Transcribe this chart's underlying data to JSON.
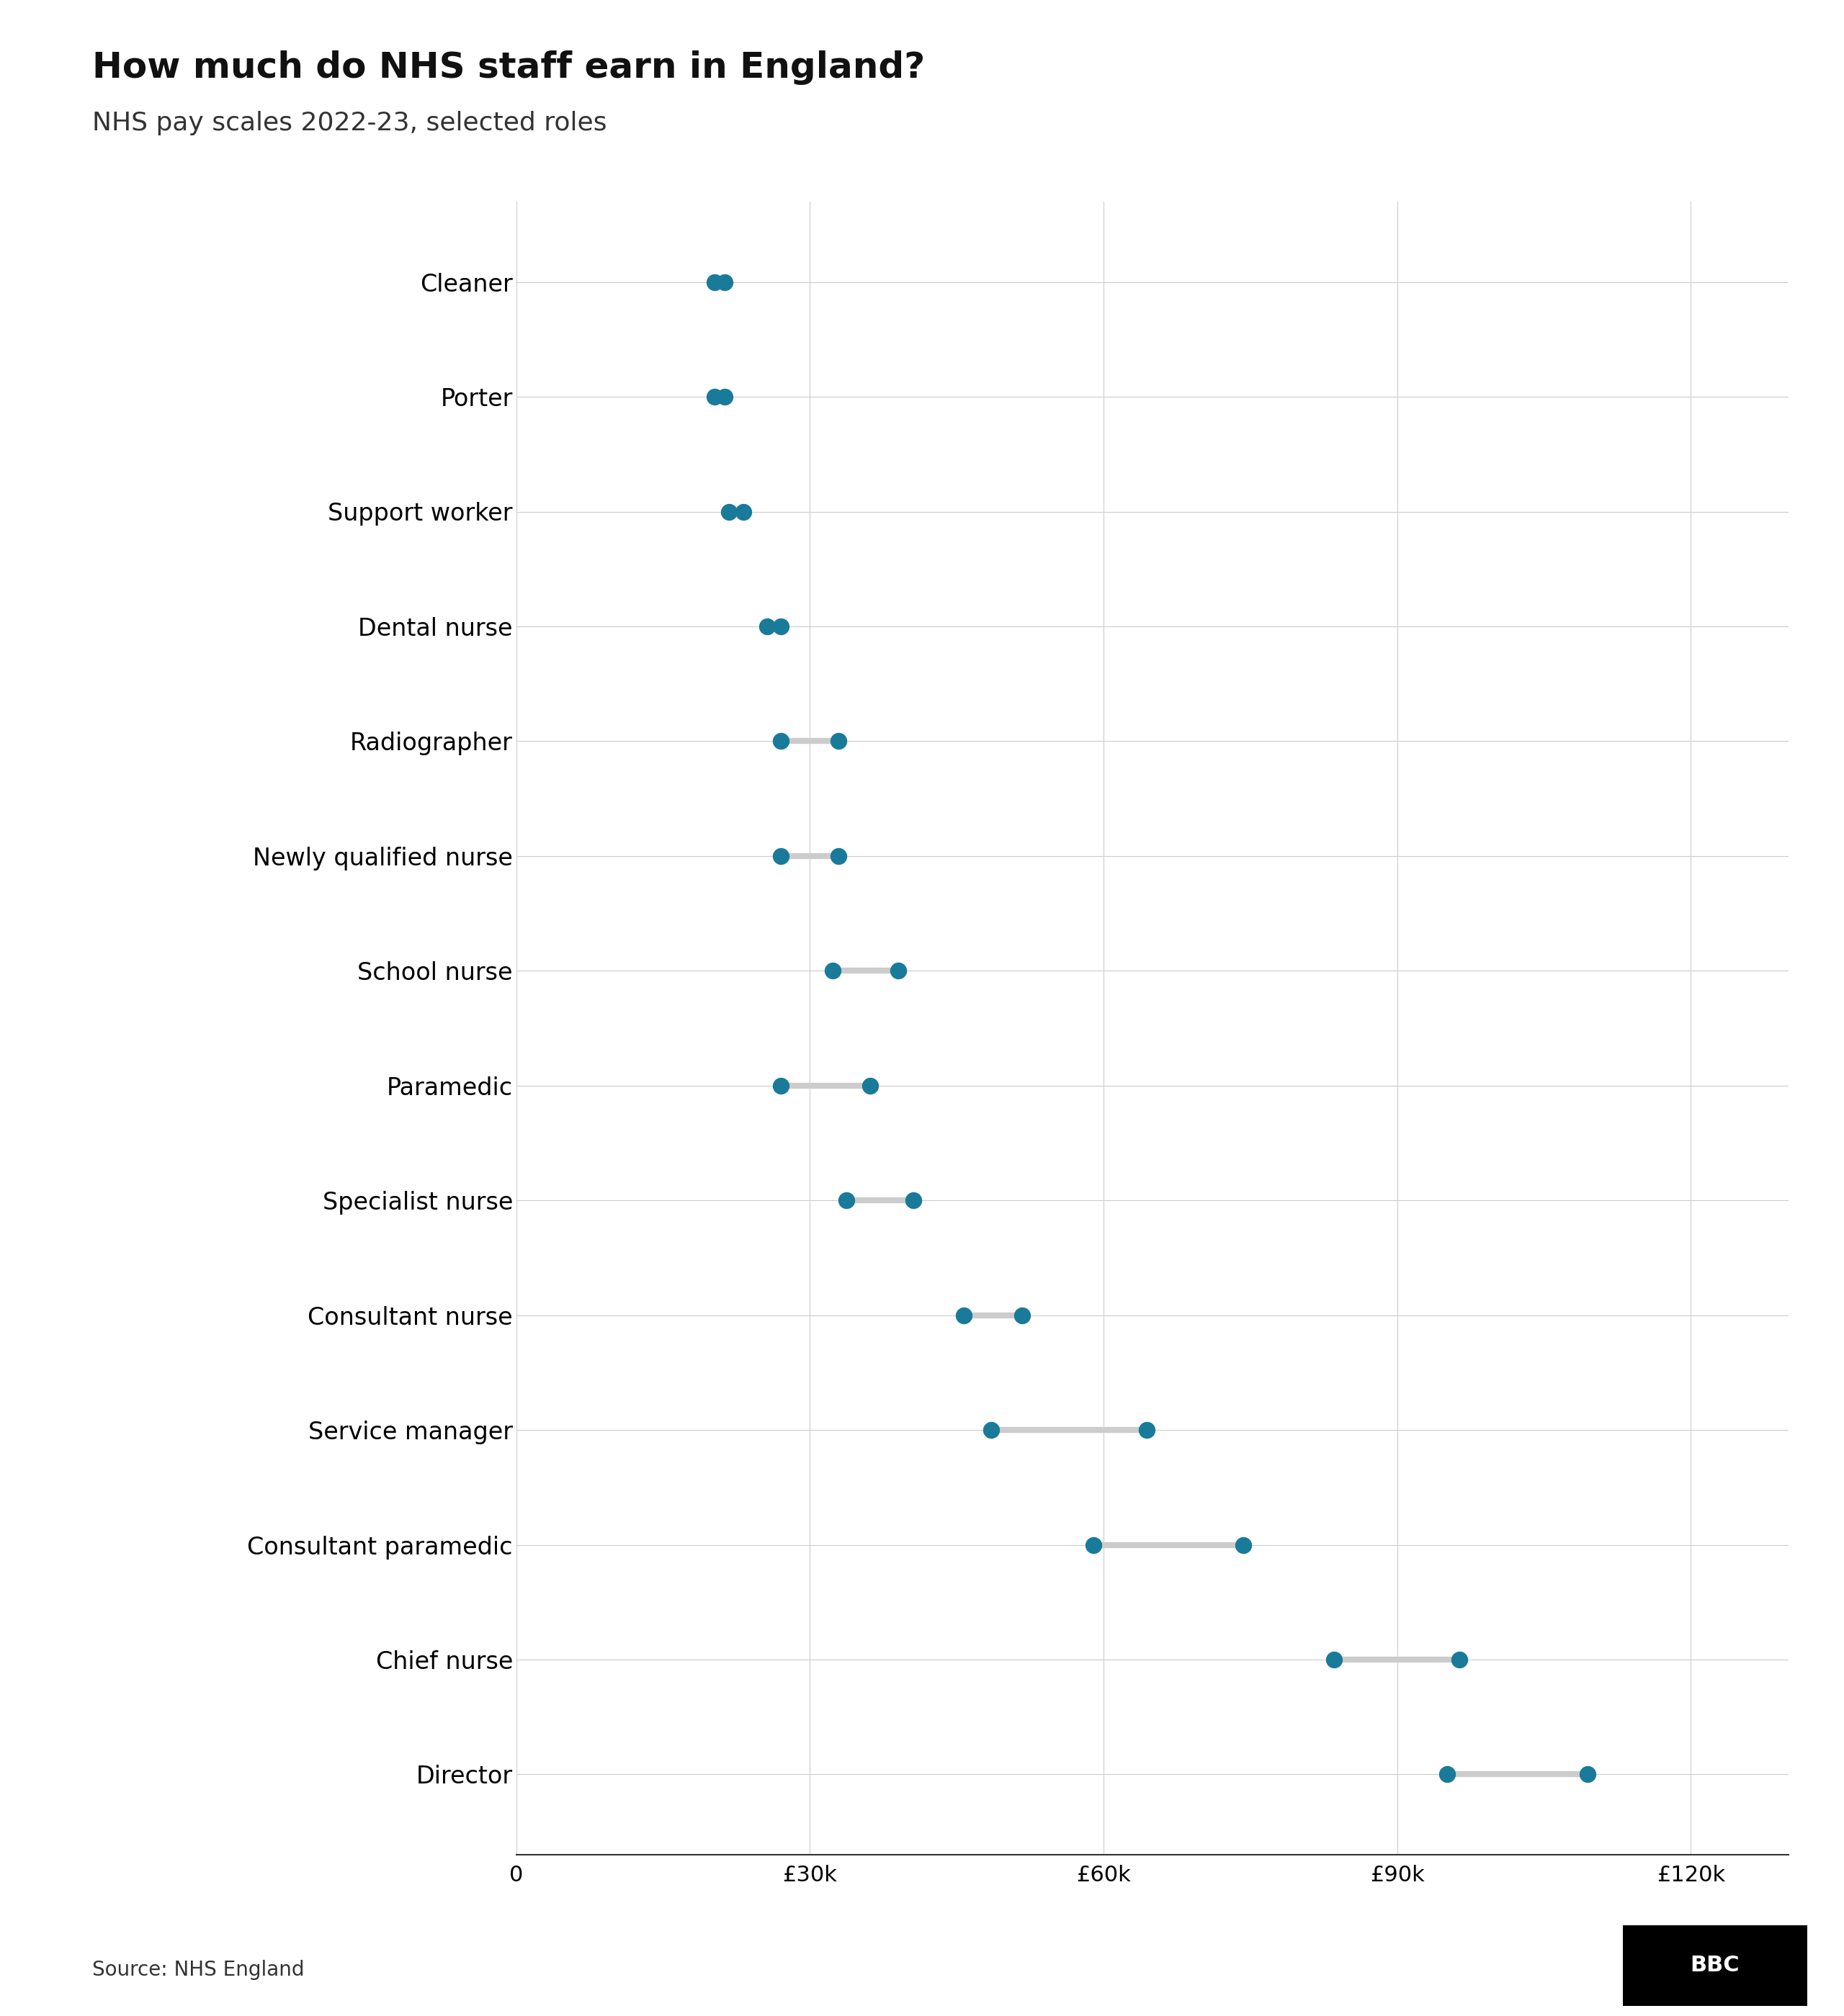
{
  "title": "How much do NHS staff earn in England?",
  "subtitle": "NHS pay scales 2022-23, selected roles",
  "source": "Source: NHS England",
  "roles": [
    "Cleaner",
    "Porter",
    "Support worker",
    "Dental nurse",
    "Radiographer",
    "Newly qualified nurse",
    "School nurse",
    "Paramedic",
    "Specialist nurse",
    "Consultant nurse",
    "Service manager",
    "Consultant paramedic",
    "Chief nurse",
    "Director"
  ],
  "min_salary": [
    20270,
    20270,
    21730,
    25655,
    27055,
    27055,
    32306,
    27055,
    33706,
    45753,
    48526,
    58972,
    83571,
    95135
  ],
  "max_salary": [
    21318,
    21318,
    23177,
    27041,
    32934,
    32934,
    39027,
    36176,
    40588,
    51668,
    64408,
    74290,
    96376,
    109475
  ],
  "dot_color": "#1a7a9a",
  "connector_color": "#cccccc",
  "background_color": "#ffffff",
  "grid_color": "#cccccc",
  "axis_color": "#333333",
  "title_fontsize": 36,
  "subtitle_fontsize": 26,
  "label_fontsize": 24,
  "tick_fontsize": 22,
  "source_fontsize": 20,
  "dot_size": 250,
  "connector_linewidth": 6,
  "xlim": [
    0,
    130000
  ],
  "xticks": [
    0,
    30000,
    60000,
    90000,
    120000
  ],
  "xtick_labels": [
    "0",
    "£30k",
    "£60k",
    "£90k",
    "£120k"
  ]
}
